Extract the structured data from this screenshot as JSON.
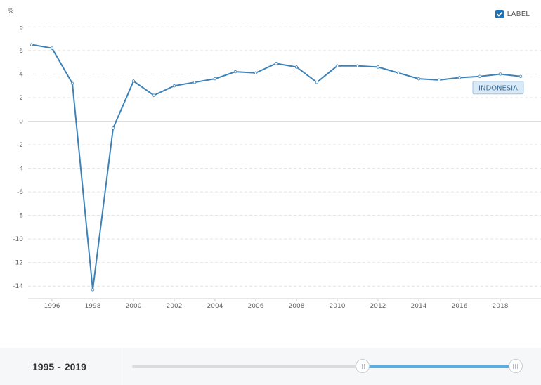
{
  "chart_data": {
    "type": "line",
    "ylabel": "%",
    "x": [
      1995,
      1996,
      1997,
      1998,
      1999,
      2000,
      2001,
      2002,
      2003,
      2004,
      2005,
      2006,
      2007,
      2008,
      2009,
      2010,
      2011,
      2012,
      2013,
      2014,
      2015,
      2016,
      2017,
      2018,
      2019
    ],
    "series": [
      {
        "name": "INDONESIA",
        "values": [
          6.5,
          6.2,
          3.2,
          -14.3,
          -0.6,
          3.4,
          2.2,
          3.0,
          3.3,
          3.6,
          4.2,
          4.1,
          4.9,
          4.6,
          3.3,
          4.7,
          4.7,
          4.6,
          4.1,
          3.6,
          3.5,
          3.7,
          3.8,
          4.0,
          3.8
        ],
        "color": "#3d82b7"
      }
    ],
    "yticks": [
      8,
      6,
      4,
      2,
      0,
      -2,
      -4,
      -6,
      -8,
      -10,
      -12,
      -14
    ],
    "xticks": [
      1996,
      1998,
      2000,
      2002,
      2004,
      2006,
      2008,
      2010,
      2012,
      2014,
      2016,
      2018
    ],
    "ylim": [
      -15,
      8.5
    ],
    "xlim": [
      1995,
      2019
    ],
    "grid": true,
    "end_label": "INDONESIA"
  },
  "legend": {
    "label": "LABEL",
    "checked": true,
    "checkbox_color": "#1f73b7"
  },
  "range": {
    "start": "1995",
    "sep": "-",
    "end": "2019"
  },
  "slider": {
    "min": 1960,
    "max": 2019,
    "start": 1995,
    "end": 2019,
    "fill_color": "#5aaee6"
  }
}
